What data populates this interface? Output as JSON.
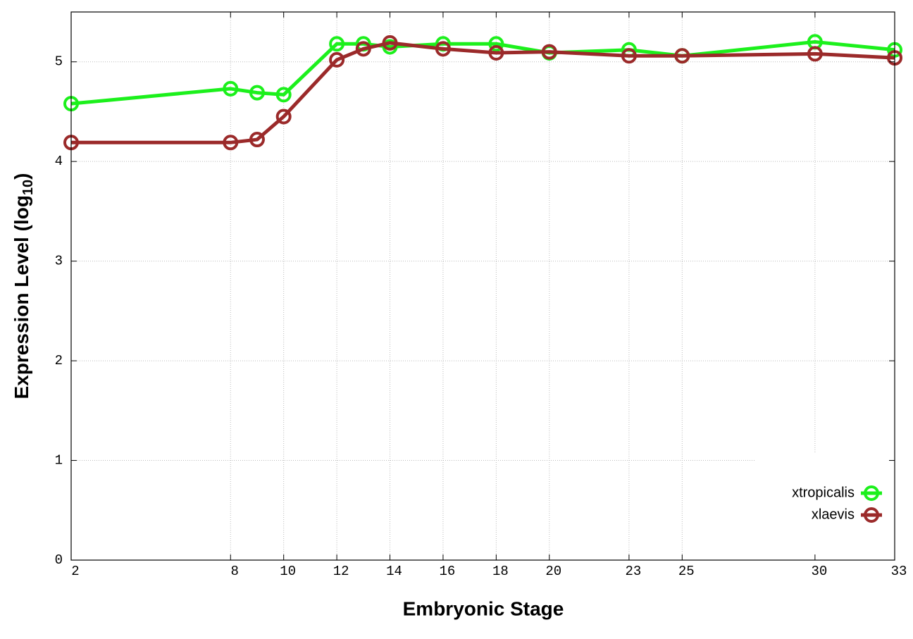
{
  "chart_data": {
    "type": "line",
    "x_label": "Embryonic Stage",
    "y_label": {
      "text": "Expression Level (log",
      "subscript": "10",
      "suffix": ")"
    },
    "x": [
      2,
      8,
      9,
      10,
      12,
      13,
      14,
      16,
      18,
      20,
      23,
      25,
      30,
      33
    ],
    "series": [
      {
        "name": "xtropicalis",
        "color": "#1cf01c",
        "values": [
          4.58,
          4.73,
          4.69,
          4.67,
          5.18,
          5.18,
          5.15,
          5.18,
          5.18,
          5.09,
          5.12,
          5.06,
          5.2,
          5.12
        ]
      },
      {
        "name": "xlaevis",
        "color": "#9b2a2a",
        "values": [
          4.19,
          4.19,
          4.22,
          4.45,
          5.02,
          5.13,
          5.19,
          5.13,
          5.09,
          5.1,
          5.06,
          5.06,
          5.08,
          5.04
        ]
      }
    ],
    "xlim": [
      2,
      33
    ],
    "xticks": [
      2,
      8,
      10,
      12,
      14,
      16,
      18,
      20,
      23,
      25,
      30,
      33
    ],
    "ylim": [
      0,
      5.5
    ],
    "yticks": [
      0,
      1,
      2,
      3,
      4,
      5
    ],
    "grid": true,
    "legend": "lower right"
  }
}
